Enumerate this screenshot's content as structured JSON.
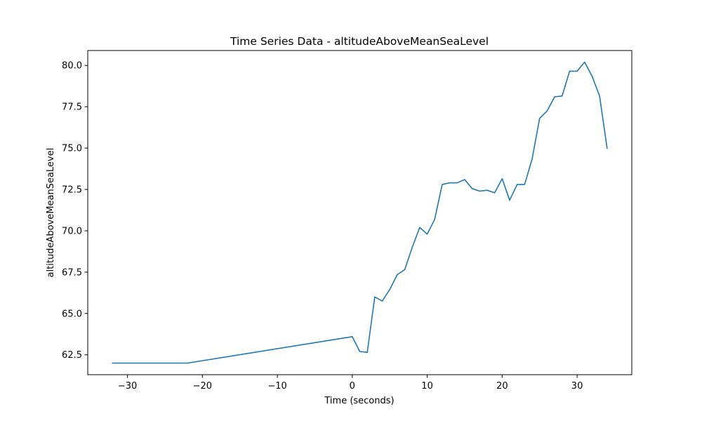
{
  "chart_data": {
    "type": "line",
    "title": "Time Series Data - altitudeAboveMeanSeaLevel",
    "xlabel": "Time (seconds)",
    "ylabel": "altitudeAboveMeanSeaLevel",
    "xlim": [
      -35.3,
      37.3
    ],
    "ylim": [
      61.3,
      80.9
    ],
    "grid": false,
    "line_color": "#1f77b4",
    "xticks": [
      -30,
      -20,
      -10,
      0,
      10,
      20,
      30
    ],
    "xtick_labels": [
      "−30",
      "−20",
      "−10",
      "0",
      "10",
      "20",
      "30"
    ],
    "yticks": [
      62.5,
      65.0,
      67.5,
      70.0,
      72.5,
      75.0,
      77.5,
      80.0
    ],
    "ytick_labels": [
      "62.5",
      "65.0",
      "67.5",
      "70.0",
      "72.5",
      "75.0",
      "77.5",
      "80.0"
    ],
    "series": [
      {
        "x": [
          -32,
          -22,
          0,
          1,
          2,
          3,
          4,
          5,
          6,
          7,
          8,
          9,
          10,
          11,
          12,
          13,
          14,
          15,
          16,
          17,
          18,
          19,
          20,
          21,
          22,
          23,
          24,
          25,
          26,
          27,
          28,
          29,
          30,
          31,
          32,
          33,
          34
        ],
        "y": [
          62.0,
          62.0,
          63.6,
          62.7,
          62.65,
          66.0,
          65.75,
          66.45,
          67.35,
          67.65,
          69.0,
          70.2,
          69.8,
          70.7,
          72.8,
          72.9,
          72.9,
          73.1,
          72.55,
          72.4,
          72.45,
          72.3,
          73.15,
          71.85,
          72.8,
          72.8,
          74.35,
          76.8,
          77.25,
          78.1,
          78.15,
          79.65,
          79.65,
          80.2,
          79.35,
          78.15,
          75.0
        ]
      }
    ]
  }
}
